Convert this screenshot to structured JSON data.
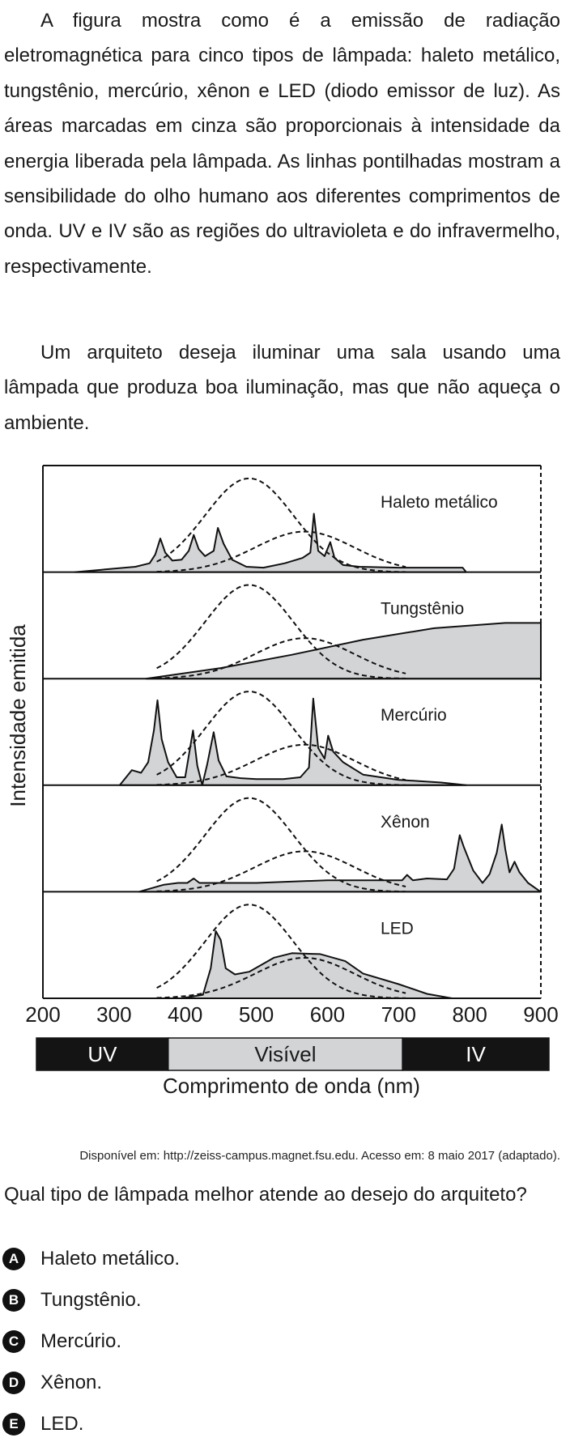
{
  "paragraphs": [
    "A figura mostra como é a emissão de radiação eletromagnética para cinco tipos de lâmpada: haleto metálico, tungstênio, mercúrio, xênon e LED (diodo emissor de luz). As áreas marcadas em cinza são proporcionais à intensidade da energia liberada pela lâmpada. As linhas pontilhadas mostram a sensibilidade do olho humano aos diferentes comprimentos de onda. UV e IV são as regiões do ultravioleta e do infravermelho, respectivamente.",
    "Um arquiteto deseja iluminar uma sala usando uma lâmpada que produza boa iluminação, mas que não aqueça o ambiente."
  ],
  "chart_data": {
    "type": "area",
    "title": "",
    "xlabel": "Comprimento de onda (nm)",
    "ylabel": "Intensidade emitida",
    "xlim": [
      200,
      900
    ],
    "x_ticks": [
      200,
      300,
      400,
      500,
      600,
      700,
      800,
      900
    ],
    "bands": [
      {
        "label": "UV",
        "from": 200,
        "to": 380
      },
      {
        "label": "Visível",
        "from": 380,
        "to": 700
      },
      {
        "label": "IV",
        "from": 700,
        "to": 900
      }
    ],
    "series": [
      {
        "name": "Haleto metálico",
        "points": [
          [
            245,
            0
          ],
          [
            330,
            0.06
          ],
          [
            350,
            0.1
          ],
          [
            358,
            0.2
          ],
          [
            365,
            0.38
          ],
          [
            372,
            0.22
          ],
          [
            382,
            0.13
          ],
          [
            395,
            0.14
          ],
          [
            405,
            0.24
          ],
          [
            412,
            0.42
          ],
          [
            419,
            0.26
          ],
          [
            428,
            0.18
          ],
          [
            440,
            0.24
          ],
          [
            446,
            0.5
          ],
          [
            454,
            0.32
          ],
          [
            466,
            0.14
          ],
          [
            486,
            0.06
          ],
          [
            510,
            0.05
          ],
          [
            540,
            0.1
          ],
          [
            565,
            0.16
          ],
          [
            576,
            0.22
          ],
          [
            581,
            0.66
          ],
          [
            587,
            0.24
          ],
          [
            596,
            0.18
          ],
          [
            604,
            0.34
          ],
          [
            610,
            0.16
          ],
          [
            622,
            0.08
          ],
          [
            645,
            0.06
          ],
          [
            700,
            0.05
          ],
          [
            790,
            0.05
          ],
          [
            795,
            0
          ]
        ],
        "color": "#d3d4d6"
      },
      {
        "name": "Tungstênio",
        "points": [
          [
            345,
            0
          ],
          [
            450,
            0.12
          ],
          [
            550,
            0.27
          ],
          [
            650,
            0.44
          ],
          [
            750,
            0.57
          ],
          [
            850,
            0.63
          ],
          [
            900,
            0.63
          ],
          [
            900,
            0
          ]
        ],
        "color": "#d3d4d6"
      },
      {
        "name": "Mercúrio",
        "points": [
          [
            308,
            0
          ],
          [
            325,
            0.17
          ],
          [
            338,
            0.14
          ],
          [
            348,
            0.26
          ],
          [
            356,
            0.62
          ],
          [
            361,
            0.96
          ],
          [
            367,
            0.52
          ],
          [
            376,
            0.26
          ],
          [
            388,
            0.09
          ],
          [
            400,
            0.09
          ],
          [
            411,
            0.62
          ],
          [
            417,
            0.22
          ],
          [
            424,
            0
          ],
          [
            431,
            0.24
          ],
          [
            440,
            0.6
          ],
          [
            447,
            0.28
          ],
          [
            458,
            0.1
          ],
          [
            478,
            0.08
          ],
          [
            500,
            0.07
          ],
          [
            538,
            0.07
          ],
          [
            562,
            0.09
          ],
          [
            574,
            0.2
          ],
          [
            580,
            0.98
          ],
          [
            587,
            0.42
          ],
          [
            596,
            0.3
          ],
          [
            601,
            0.56
          ],
          [
            608,
            0.38
          ],
          [
            622,
            0.26
          ],
          [
            650,
            0.12
          ],
          [
            700,
            0.06
          ],
          [
            760,
            0.03
          ],
          [
            795,
            0
          ]
        ],
        "color": "#d3d4d6"
      },
      {
        "name": "Xênon",
        "points": [
          [
            335,
            0
          ],
          [
            370,
            0.08
          ],
          [
            390,
            0.1
          ],
          [
            403,
            0.1
          ],
          [
            412,
            0.15
          ],
          [
            420,
            0.1
          ],
          [
            500,
            0.1
          ],
          [
            600,
            0.13
          ],
          [
            705,
            0.13
          ],
          [
            712,
            0.19
          ],
          [
            720,
            0.13
          ],
          [
            740,
            0.15
          ],
          [
            768,
            0.14
          ],
          [
            778,
            0.26
          ],
          [
            786,
            0.64
          ],
          [
            792,
            0.5
          ],
          [
            805,
            0.24
          ],
          [
            818,
            0.1
          ],
          [
            828,
            0.2
          ],
          [
            838,
            0.44
          ],
          [
            845,
            0.76
          ],
          [
            850,
            0.48
          ],
          [
            856,
            0.22
          ],
          [
            863,
            0.34
          ],
          [
            870,
            0.22
          ],
          [
            882,
            0.1
          ],
          [
            896,
            0.02
          ],
          [
            900,
            0
          ]
        ],
        "color": "#d3d4d6"
      },
      {
        "name": "LED",
        "points": [
          [
            395,
            0
          ],
          [
            425,
            0.04
          ],
          [
            436,
            0.34
          ],
          [
            443,
            0.76
          ],
          [
            450,
            0.66
          ],
          [
            457,
            0.34
          ],
          [
            470,
            0.27
          ],
          [
            490,
            0.3
          ],
          [
            525,
            0.46
          ],
          [
            550,
            0.51
          ],
          [
            590,
            0.5
          ],
          [
            625,
            0.42
          ],
          [
            650,
            0.28
          ],
          [
            700,
            0.16
          ],
          [
            740,
            0.05
          ],
          [
            775,
            0
          ]
        ],
        "color": "#d3d4d6"
      }
    ]
  },
  "figure": {
    "source": "Disponível em: http://zeiss-campus.magnet.fsu.edu. Acesso em: 8 maio 2017 (adaptado)."
  },
  "question": "Qual tipo de lâmpada melhor atende ao desejo do arquiteto?",
  "options": [
    {
      "letter": "A",
      "text": "Haleto metálico."
    },
    {
      "letter": "B",
      "text": "Tungstênio."
    },
    {
      "letter": "C",
      "text": "Mercúrio."
    },
    {
      "letter": "D",
      "text": "Xênon."
    },
    {
      "letter": "E",
      "text": "LED."
    }
  ]
}
